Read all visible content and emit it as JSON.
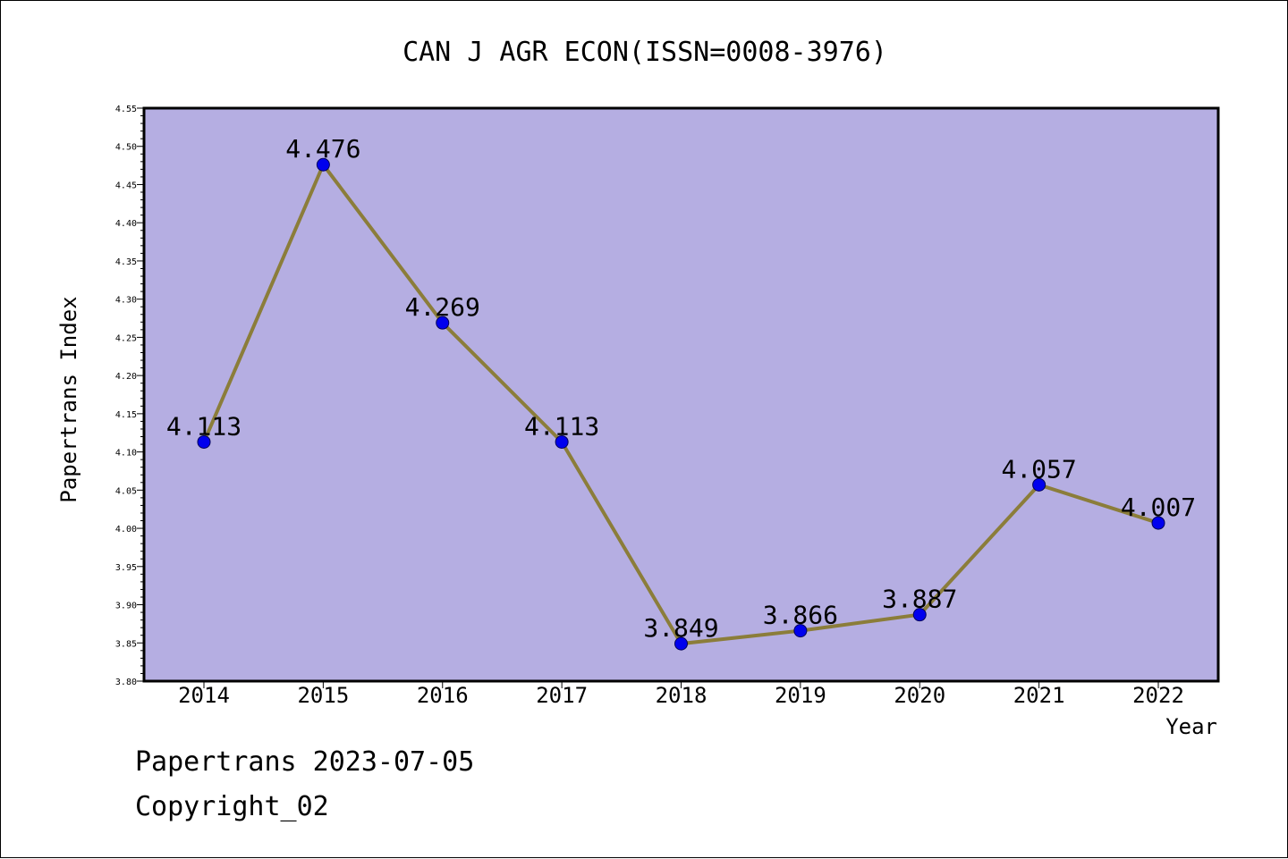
{
  "chart_data": {
    "type": "line",
    "title": "CAN J AGR ECON(ISSN=0008-3976)",
    "xlabel": "Year",
    "ylabel": "Papertrans Index",
    "categories": [
      "2014",
      "2015",
      "2016",
      "2017",
      "2018",
      "2019",
      "2020",
      "2021",
      "2022"
    ],
    "series": [
      {
        "values": [
          4.113,
          4.476,
          4.269,
          4.113,
          3.849,
          3.866,
          3.887,
          4.057,
          4.007
        ],
        "labels": [
          "4.113",
          "4.476",
          "4.269",
          "4.113",
          "3.849",
          "3.866",
          "3.887",
          "4.057",
          "4.007"
        ]
      }
    ],
    "ylim": [
      3.8,
      4.55
    ],
    "yticks": [
      "3.80",
      "3.85",
      "3.90",
      "3.95",
      "4.00",
      "4.05",
      "4.10",
      "4.15",
      "4.20",
      "4.25",
      "4.30",
      "4.35",
      "4.40",
      "4.45",
      "4.50",
      "4.55"
    ],
    "grid": false,
    "legend": "none",
    "colors": {
      "plot_background": "#b5aee2",
      "line": "#8b7d3a",
      "marker_fill": "#0000ee",
      "marker_stroke": "#00005a"
    }
  },
  "footer": {
    "line1": "Papertrans 2023-07-05",
    "line2": "Copyright_02"
  }
}
